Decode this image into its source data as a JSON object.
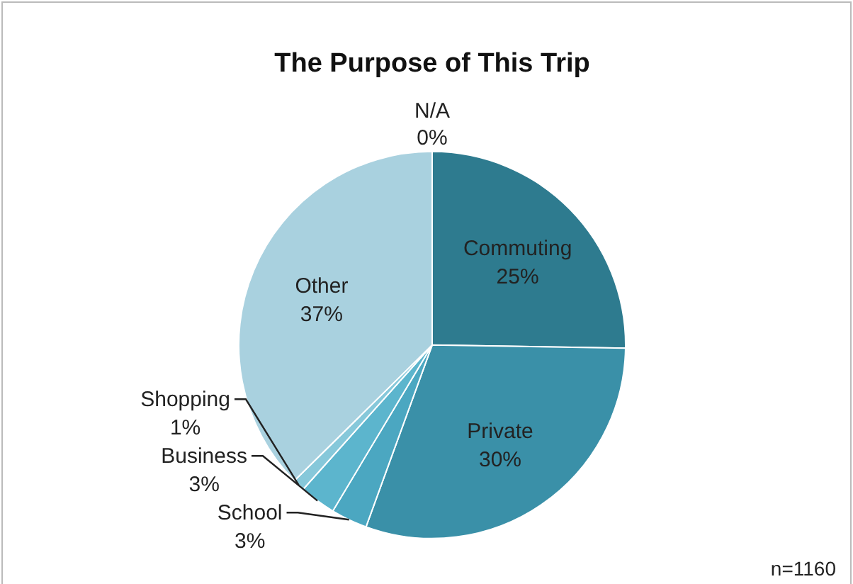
{
  "chart_data": {
    "type": "pie",
    "title": "The Purpose of This Trip",
    "categories": [
      "N/A",
      "Commuting",
      "Private",
      "School",
      "Business",
      "Shopping",
      "Other"
    ],
    "values": [
      0,
      25,
      30,
      3,
      3,
      1,
      37
    ],
    "value_labels": [
      "0%",
      "25%",
      "30%",
      "3%",
      "3%",
      "1%",
      "37%"
    ],
    "colors": [
      "#d4e8ef",
      "#2e7b8f",
      "#3a90a8",
      "#4ba7c1",
      "#5cb5cd",
      "#86c8da",
      "#a9d1df"
    ],
    "legend": false,
    "annotations": [
      "n=1160"
    ]
  }
}
